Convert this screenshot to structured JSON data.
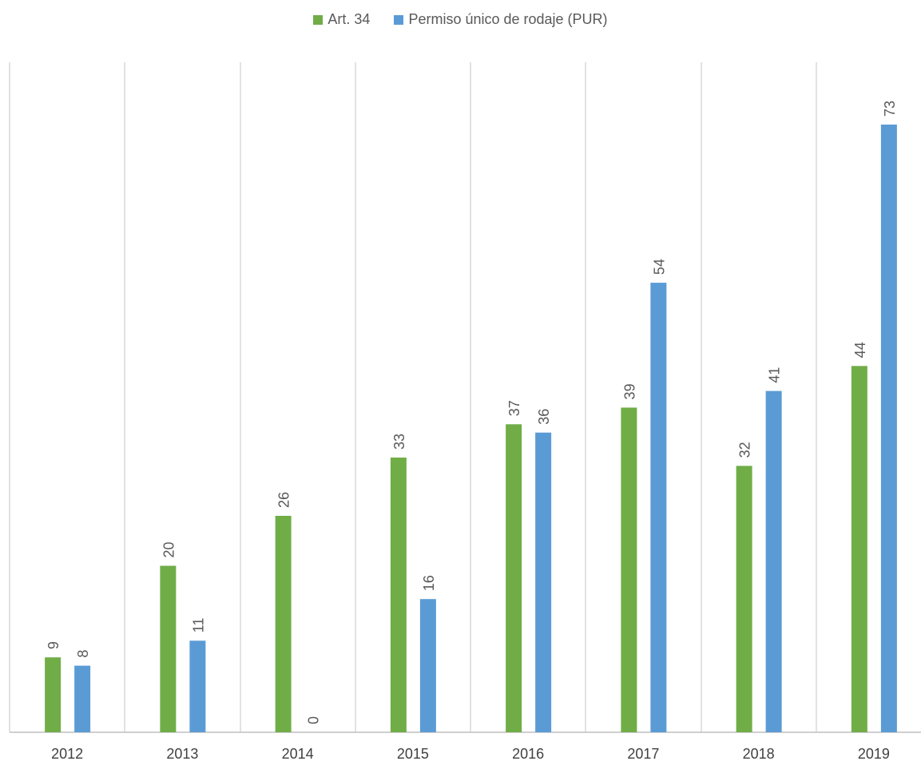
{
  "chart_data": {
    "type": "bar",
    "categories": [
      "2012",
      "2013",
      "2014",
      "2015",
      "2016",
      "2017",
      "2018",
      "2019"
    ],
    "series": [
      {
        "name": "Art. 34",
        "color": "#70AD47",
        "values": [
          9,
          20,
          26,
          33,
          37,
          39,
          32,
          44
        ]
      },
      {
        "name": "Permiso único de rodaje (PUR)",
        "color": "#5B9BD5",
        "values": [
          8,
          11,
          0,
          16,
          36,
          54,
          41,
          73
        ]
      }
    ],
    "ylim": [
      0,
      80
    ],
    "grid": "vertical category separators",
    "legend_position": "top-center",
    "data_labels": "rotated above bars",
    "title": "",
    "xlabel": "",
    "ylabel": ""
  }
}
